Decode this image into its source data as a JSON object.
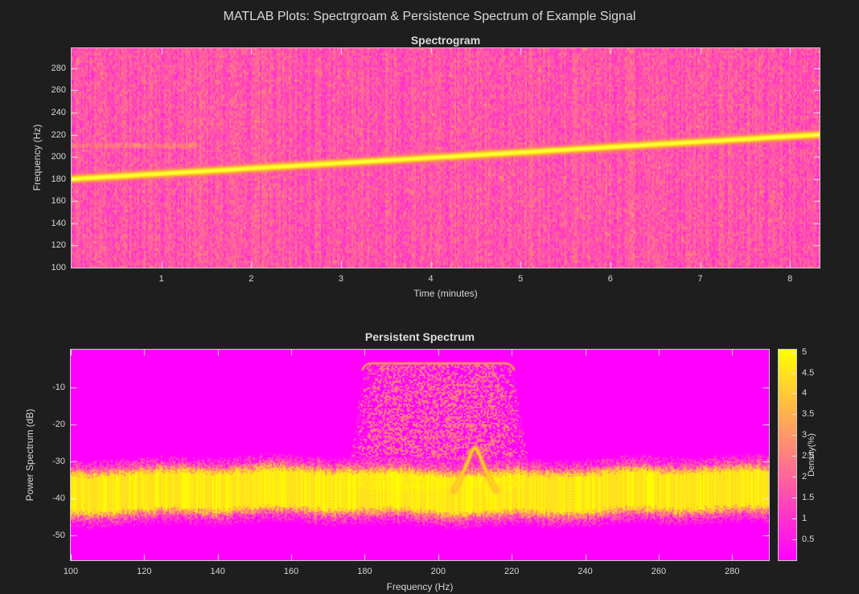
{
  "figure": {
    "title": "MATLAB Plots: Spectrgroam & Persistence Spectrum of Example Signal",
    "background_color": "#1e1e1e",
    "text_color": "#d6d6d6",
    "axis_box_color": "#c9c9c9"
  },
  "chart_data": [
    {
      "type": "heatmap",
      "title": "Spectrogram",
      "xlabel": "Time (minutes)",
      "ylabel": "Frequency (Hz)",
      "xlim": [
        0,
        8.33
      ],
      "ylim": [
        100,
        298
      ],
      "xticks": [
        1,
        2,
        3,
        4,
        5,
        6,
        7,
        8
      ],
      "yticks": [
        100,
        120,
        140,
        160,
        180,
        200,
        220,
        240,
        260,
        280
      ],
      "colormap": "spring (magenta-to-yellow)",
      "background": "low-power pink noise",
      "features": {
        "chirp": {
          "description": "bright yellow chirp rising linearly",
          "start_hz": 180,
          "end_hz": 220,
          "t_start_min": 0,
          "t_end_min": 8.33
        },
        "tone": {
          "description": "faint orange intermittent tone",
          "hz": 210,
          "t_start_min": 0,
          "t_end_min": 1.38
        }
      }
    },
    {
      "type": "heatmap",
      "title": "Persistent Spectrum",
      "xlabel": "Frequency (Hz)",
      "ylabel": "Power Spectrum (dB)",
      "xlim": [
        100,
        290
      ],
      "ylim": [
        -56.8,
        0.2
      ],
      "xticks": [
        100,
        120,
        140,
        160,
        180,
        200,
        220,
        240,
        260,
        280
      ],
      "yticks": [
        -10,
        -20,
        -30,
        -40,
        -50
      ],
      "colormap": "spring (magenta-to-yellow)",
      "colorbar": {
        "label": "Density(%)",
        "ticks": [
          0.5,
          1,
          1.5,
          2,
          2.5,
          3,
          3.5,
          4,
          4.5,
          5
        ],
        "vmin": 0,
        "vmax": 5.05
      },
      "features": {
        "noise_floor": {
          "description": "bright yellow noise floor band across all frequencies",
          "center_db": -38
        },
        "chirp_block": {
          "description": "speckled orange trapezoid of persistent chirp energy",
          "f_top_hz": [
            180,
            220
          ],
          "f_bottom_hz": [
            175,
            225
          ],
          "top_db": -3.5,
          "bottom_db": -34
        },
        "tone_arch": {
          "description": "narrow arch of 210 Hz tone rising above noise floor",
          "hz": 210,
          "peak_db": -26,
          "base_db": -34
        }
      }
    }
  ]
}
